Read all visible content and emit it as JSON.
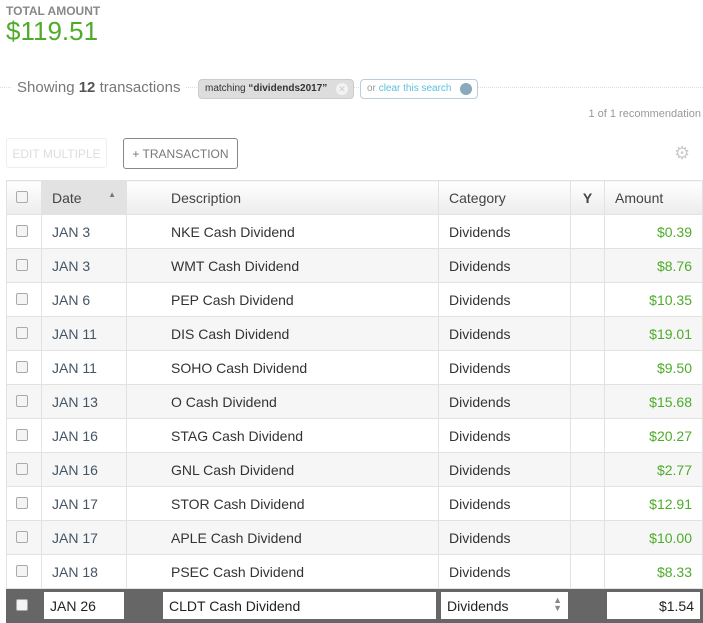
{
  "summary": {
    "total_label": "TOTAL AMOUNT",
    "total_amount": "$119.51"
  },
  "search": {
    "showing_prefix": "Showing",
    "count": "12",
    "showing_suffix": "transactions",
    "chip_prefix": "matching",
    "chip_query": "“dividends2017”",
    "clear_prefix": "or",
    "clear_link": "clear this search"
  },
  "recommendation": "1 of 1 recommendation",
  "toolbar": {
    "edit_multiple": "EDIT MULTIPLE",
    "add_transaction": "+ TRANSACTION"
  },
  "table": {
    "headers": {
      "date": "Date",
      "description": "Description",
      "category": "Category",
      "amount": "Amount"
    },
    "rows": [
      {
        "date": "JAN 3",
        "description": "NKE Cash Dividend",
        "category": "Dividends",
        "amount": "$0.39"
      },
      {
        "date": "JAN 3",
        "description": "WMT Cash Dividend",
        "category": "Dividends",
        "amount": "$8.76"
      },
      {
        "date": "JAN 6",
        "description": "PEP Cash Dividend",
        "category": "Dividends",
        "amount": "$10.35"
      },
      {
        "date": "JAN 11",
        "description": "DIS Cash Dividend",
        "category": "Dividends",
        "amount": "$19.01"
      },
      {
        "date": "JAN 11",
        "description": "SOHO Cash Dividend",
        "category": "Dividends",
        "amount": "$9.50"
      },
      {
        "date": "JAN 13",
        "description": "O Cash Dividend",
        "category": "Dividends",
        "amount": "$15.68"
      },
      {
        "date": "JAN 16",
        "description": "STAG Cash Dividend",
        "category": "Dividends",
        "amount": "$20.27"
      },
      {
        "date": "JAN 16",
        "description": "GNL Cash Dividend",
        "category": "Dividends",
        "amount": "$2.77"
      },
      {
        "date": "JAN 17",
        "description": "STOR Cash Dividend",
        "category": "Dividends",
        "amount": "$12.91"
      },
      {
        "date": "JAN 17",
        "description": "APLE Cash Dividend",
        "category": "Dividends",
        "amount": "$10.00"
      },
      {
        "date": "JAN 18",
        "description": "PSEC Cash Dividend",
        "category": "Dividends",
        "amount": "$8.33"
      }
    ],
    "editing_row": {
      "date": "JAN 26",
      "description": "CLDT Cash Dividend",
      "category": "Dividends",
      "amount": "$1.54"
    }
  },
  "colors": {
    "amount_green": "#4eac2a",
    "link": "#5bc0de",
    "edit_row_bg": "#666666"
  }
}
